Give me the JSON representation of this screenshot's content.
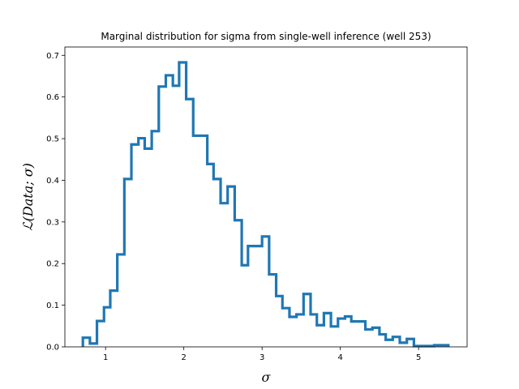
{
  "chart_data": {
    "type": "line",
    "style": "step-histogram",
    "title": "Marginal distribution for sigma from single-well inference (well 253)",
    "xlabel": "σ",
    "ylabel": "ℒ(Data; σ)",
    "xlim": [
      0.48,
      5.62
    ],
    "ylim": [
      0.0,
      0.72
    ],
    "x_ticks": [
      1,
      2,
      3,
      4,
      5
    ],
    "y_ticks": [
      0.0,
      0.1,
      0.2,
      0.3,
      0.4,
      0.5,
      0.6,
      0.7
    ],
    "x_tick_labels": [
      "1",
      "2",
      "3",
      "4",
      "5"
    ],
    "y_tick_labels": [
      "0.0",
      "0.1",
      "0.2",
      "0.3",
      "0.4",
      "0.5",
      "0.6",
      "0.7"
    ],
    "grid": false,
    "color": "#1f77b4",
    "bin_edges": [
      0.71,
      0.8,
      0.89,
      0.98,
      1.06,
      1.15,
      1.24,
      1.33,
      1.42,
      1.5,
      1.59,
      1.68,
      1.77,
      1.86,
      1.94,
      2.03,
      2.12,
      2.21,
      2.3,
      2.38,
      2.47,
      2.56,
      2.65,
      2.74,
      2.82,
      2.91,
      3.0,
      3.09,
      3.18,
      3.26,
      3.35,
      3.44,
      3.53,
      3.62,
      3.7,
      3.79,
      3.88,
      3.97,
      4.06,
      4.14,
      4.23,
      4.32,
      4.41,
      4.5,
      4.58,
      4.67,
      4.76,
      4.85,
      4.94,
      5.02,
      5.11,
      5.2,
      5.29,
      5.38
    ],
    "values": [
      0.022,
      0.008,
      0.062,
      0.095,
      0.135,
      0.222,
      0.403,
      0.486,
      0.501,
      0.476,
      0.518,
      0.625,
      0.652,
      0.627,
      0.683,
      0.595,
      0.507,
      0.507,
      0.439,
      0.403,
      0.345,
      0.385,
      0.304,
      0.196,
      0.242,
      0.242,
      0.265,
      0.174,
      0.122,
      0.093,
      0.072,
      0.078,
      0.127,
      0.078,
      0.052,
      0.081,
      0.049,
      0.068,
      0.073,
      0.061,
      0.061,
      0.042,
      0.046,
      0.03,
      0.017,
      0.024,
      0.01,
      0.019,
      0.002,
      0.002,
      0.002,
      0.004,
      0.004
    ]
  }
}
